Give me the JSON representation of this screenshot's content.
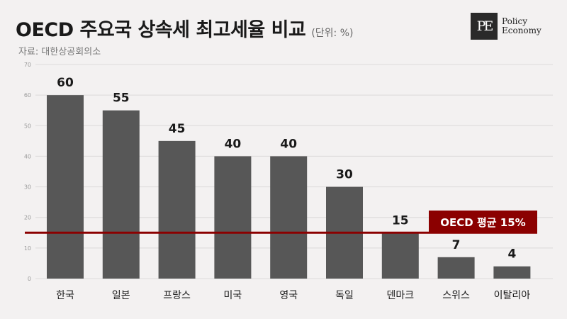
{
  "header": {
    "title": "OECD 주요국 상속세 최고세율 비교",
    "unit": "(단위: %)",
    "source": "자료: 대한상공회의소"
  },
  "logo": {
    "mark": "PE",
    "line1": "Policy",
    "line2": "Economy"
  },
  "colors": {
    "bar": "#575757",
    "avg_line": "#8b0000",
    "background": "#f3f1f1"
  },
  "chart_data": {
    "type": "bar",
    "categories": [
      "한국",
      "일본",
      "프랑스",
      "미국",
      "영국",
      "독일",
      "덴마크",
      "스위스",
      "이탈리아"
    ],
    "values": [
      60,
      55,
      45,
      40,
      40,
      30,
      15,
      7,
      4
    ],
    "ylim": [
      0,
      70
    ],
    "yticks": [
      0,
      10,
      20,
      30,
      40,
      50,
      60,
      70
    ],
    "grid": true,
    "reference_line": {
      "value": 15,
      "label": "OECD 평균 15%"
    }
  }
}
